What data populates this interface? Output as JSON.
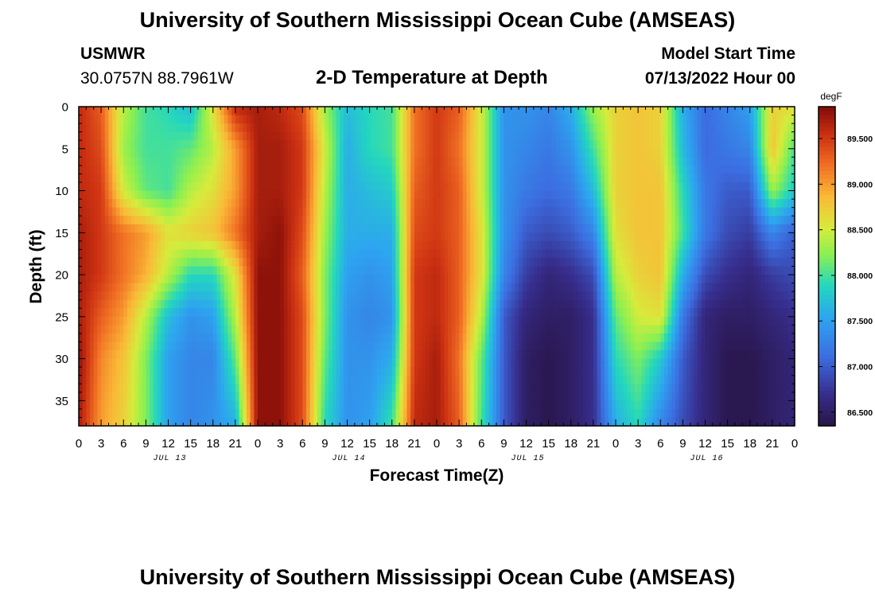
{
  "header": {
    "title": "University of Southern Mississippi Ocean Cube (AMSEAS)",
    "station_name": "USMWR",
    "station_coords": "30.0757N  88.7961W",
    "plot_title": "2-D Temperature at Depth",
    "model_start_label": "Model Start Time",
    "model_start_value": "07/13/2022 Hour 00"
  },
  "footer": {
    "title": "University of Southern Mississippi Ocean Cube (AMSEAS)"
  },
  "chart_data": {
    "type": "heatmap",
    "title": "2-D Temperature at Depth",
    "xlabel": "Forecast Time(Z)",
    "ylabel": "Depth (ft)",
    "x_range_hours": [
      0,
      96
    ],
    "y_range_ft": [
      0,
      38
    ],
    "x_tick_labels": [
      "0",
      "3",
      "6",
      "9",
      "12",
      "15",
      "18",
      "21",
      "0",
      "3",
      "6",
      "9",
      "12",
      "15",
      "18",
      "21",
      "0",
      "3",
      "6",
      "9",
      "12",
      "15",
      "18",
      "21",
      "0",
      "3",
      "6",
      "9",
      "12",
      "15",
      "18",
      "21",
      "0"
    ],
    "x_tick_hours": [
      0,
      3,
      6,
      9,
      12,
      15,
      18,
      21,
      24,
      27,
      30,
      33,
      36,
      39,
      42,
      45,
      48,
      51,
      54,
      57,
      60,
      63,
      66,
      69,
      72,
      75,
      78,
      81,
      84,
      87,
      90,
      93,
      96
    ],
    "day_labels": [
      {
        "hour": 12,
        "label": "JUL 13"
      },
      {
        "hour": 36,
        "label": "JUL 14"
      },
      {
        "hour": 60,
        "label": "JUL 15"
      },
      {
        "hour": 84,
        "label": "JUL 16"
      }
    ],
    "y_ticks": [
      0,
      5,
      10,
      15,
      20,
      25,
      30,
      35
    ],
    "colorbar": {
      "unit": "degF",
      "min": 86.35,
      "max": 89.85,
      "tick_values": [
        86.5,
        87.0,
        87.5,
        88.0,
        88.5,
        89.0,
        89.5
      ],
      "tick_labels": [
        "86.500",
        "87.000",
        "87.500",
        "88.000",
        "88.500",
        "89.000",
        "89.500"
      ]
    },
    "grid_depths_ft": [
      0,
      5,
      10,
      15,
      20,
      25,
      30,
      38
    ],
    "grid_hours": [
      0,
      3,
      6,
      9,
      12,
      15,
      18,
      21,
      24,
      27,
      30,
      33,
      36,
      39,
      42,
      45,
      48,
      51,
      54,
      57,
      60,
      63,
      66,
      69,
      72,
      75,
      78,
      81,
      84,
      87,
      90,
      93,
      96
    ],
    "temperature_degF": [
      [
        89.6,
        89.6,
        89.6,
        89.7,
        89.7,
        89.7,
        89.8,
        89.7
      ],
      [
        89.3,
        89.4,
        89.5,
        89.5,
        89.5,
        89.3,
        89.1,
        89.0
      ],
      [
        88.4,
        88.3,
        88.5,
        89.2,
        89.2,
        89.0,
        88.8,
        88.7
      ],
      [
        88.0,
        88.0,
        88.1,
        89.0,
        88.9,
        88.4,
        88.2,
        88.2
      ],
      [
        87.9,
        88.0,
        88.0,
        88.6,
        88.4,
        87.7,
        87.5,
        87.5
      ],
      [
        87.7,
        88.1,
        88.4,
        88.7,
        87.9,
        87.4,
        87.3,
        87.3
      ],
      [
        88.6,
        88.4,
        88.6,
        88.8,
        87.9,
        87.5,
        87.3,
        87.4
      ],
      [
        89.6,
        89.0,
        89.0,
        89.2,
        88.6,
        88.4,
        88.1,
        87.6
      ],
      [
        89.7,
        89.7,
        89.7,
        89.7,
        89.8,
        89.8,
        89.8,
        89.8
      ],
      [
        89.6,
        89.7,
        89.7,
        89.8,
        89.8,
        89.8,
        89.8,
        89.8
      ],
      [
        89.4,
        89.5,
        89.5,
        89.4,
        89.3,
        89.4,
        89.4,
        89.4
      ],
      [
        88.3,
        88.5,
        88.4,
        88.3,
        88.2,
        88.2,
        88.1,
        87.9
      ],
      [
        87.7,
        87.6,
        87.6,
        87.6,
        87.5,
        87.4,
        87.4,
        87.4
      ],
      [
        87.9,
        87.9,
        87.7,
        87.6,
        87.4,
        87.3,
        87.4,
        87.5
      ],
      [
        88.0,
        88.0,
        87.8,
        87.6,
        87.5,
        87.4,
        87.6,
        88.0
      ],
      [
        89.2,
        89.2,
        89.3,
        89.4,
        89.5,
        89.5,
        89.5,
        89.6
      ],
      [
        89.5,
        89.5,
        89.5,
        89.5,
        89.6,
        89.6,
        89.7,
        89.7
      ],
      [
        89.3,
        89.2,
        89.3,
        89.3,
        89.3,
        89.3,
        89.2,
        89.3
      ],
      [
        88.5,
        88.5,
        88.5,
        88.6,
        88.6,
        88.4,
        88.1,
        88.0
      ],
      [
        87.4,
        87.4,
        87.4,
        87.4,
        87.3,
        87.0,
        87.0,
        87.0
      ],
      [
        87.4,
        87.3,
        87.2,
        87.0,
        86.8,
        86.6,
        86.5,
        86.5
      ],
      [
        87.3,
        87.2,
        87.1,
        86.9,
        86.6,
        86.5,
        86.4,
        86.4
      ],
      [
        87.6,
        87.4,
        87.2,
        87.0,
        86.7,
        86.5,
        86.5,
        86.5
      ],
      [
        88.3,
        88.0,
        87.7,
        87.3,
        86.9,
        86.7,
        86.7,
        86.7
      ],
      [
        88.7,
        88.7,
        88.7,
        88.6,
        88.4,
        88.1,
        87.9,
        87.6
      ],
      [
        88.8,
        88.8,
        88.8,
        88.8,
        88.7,
        88.5,
        88.2,
        87.9
      ],
      [
        88.7,
        88.7,
        88.8,
        88.8,
        88.8,
        88.6,
        87.8,
        87.3
      ],
      [
        87.6,
        87.7,
        87.9,
        88.0,
        87.6,
        87.2,
        87.0,
        86.9
      ],
      [
        87.1,
        87.1,
        87.2,
        87.2,
        86.9,
        86.6,
        86.6,
        86.6
      ],
      [
        87.3,
        87.2,
        87.0,
        86.9,
        86.7,
        86.5,
        86.4,
        86.4
      ],
      [
        87.5,
        87.3,
        87.0,
        86.8,
        86.6,
        86.5,
        86.4,
        86.4
      ],
      [
        88.7,
        88.8,
        88.3,
        87.3,
        86.8,
        86.6,
        86.5,
        86.5
      ],
      [
        88.6,
        88.0,
        87.8,
        87.0,
        86.9,
        86.7,
        86.6,
        86.6
      ]
    ]
  }
}
